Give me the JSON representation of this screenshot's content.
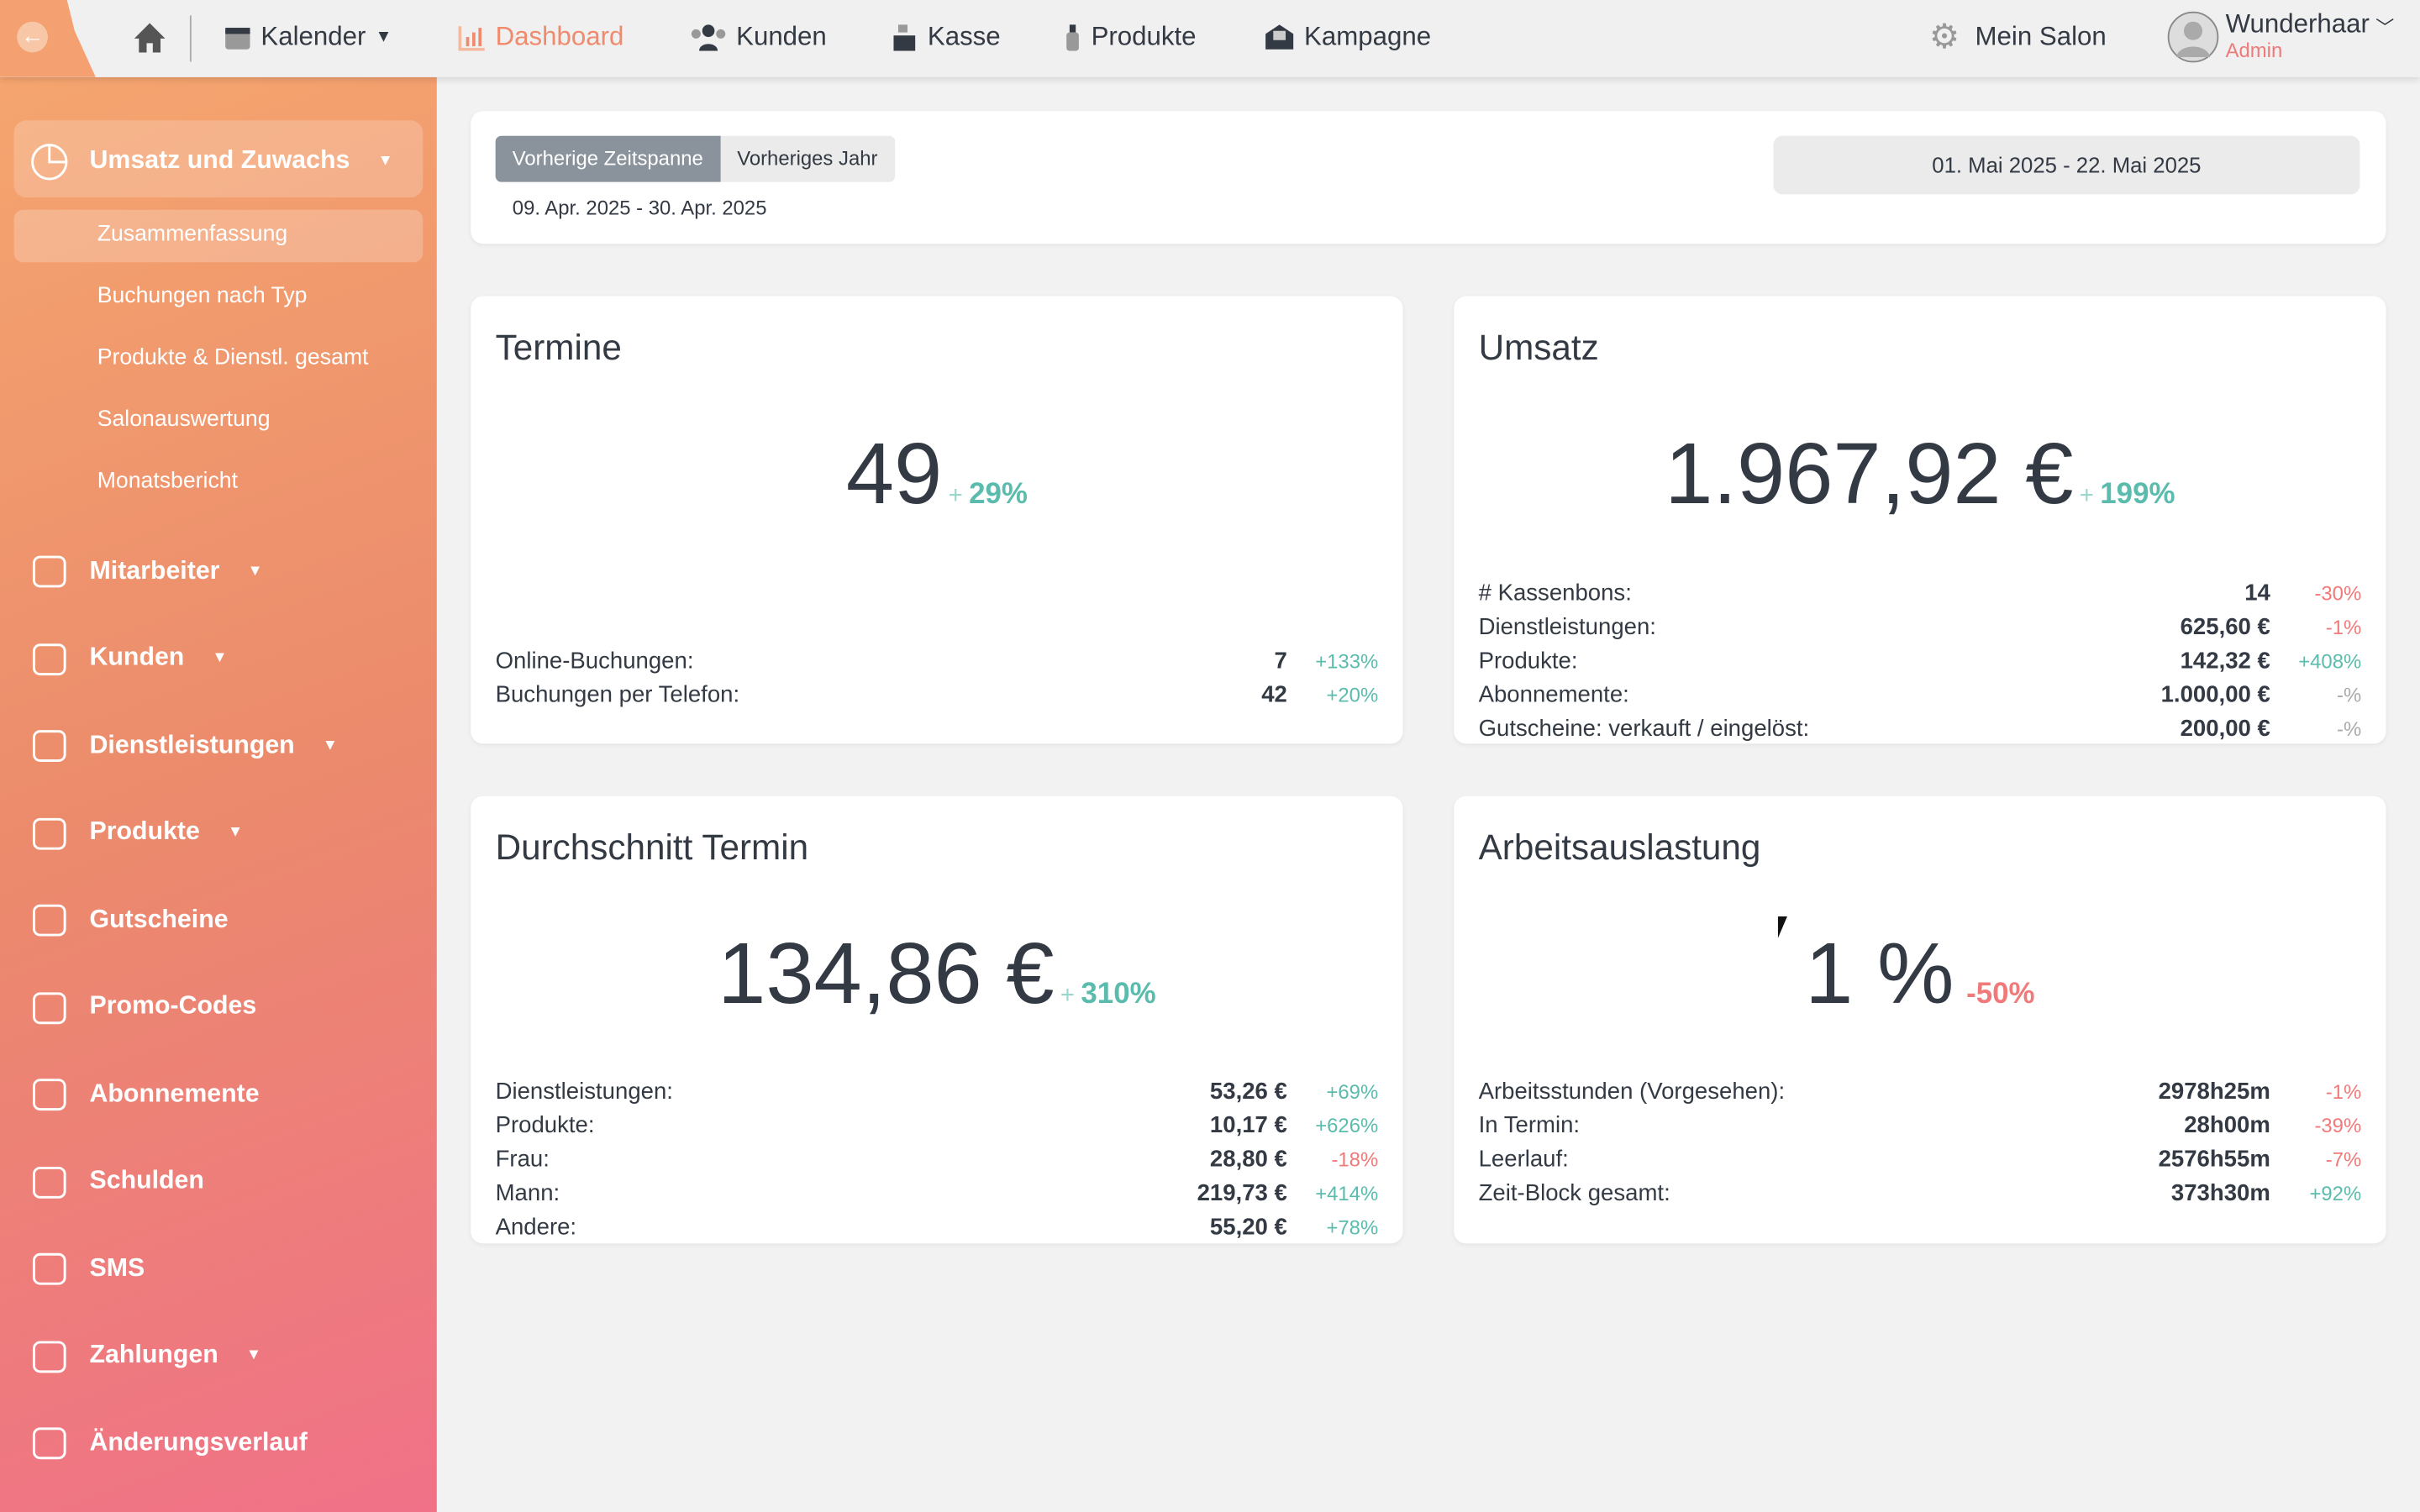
{
  "topbar": {
    "nav": [
      {
        "label": "Kalender",
        "icon": "calendar-icon"
      },
      {
        "label": "Dashboard",
        "icon": "bar-chart-icon",
        "active": true
      },
      {
        "label": "Kunden",
        "icon": "users-icon"
      },
      {
        "label": "Kasse",
        "icon": "cash-register-icon"
      },
      {
        "label": "Produkte",
        "icon": "bottle-icon"
      },
      {
        "label": "Kampagne",
        "icon": "envelope-icon"
      }
    ],
    "settings": "Mein Salon",
    "user": {
      "name": "Wunderhaar",
      "role": "Admin"
    }
  },
  "sidebar": {
    "section": "Umsatz und Zuwachs",
    "subitems": [
      "Zusammenfassung",
      "Buchungen nach Typ",
      "Produkte & Dienstl. gesamt",
      "Salonauswertung",
      "Monatsbericht"
    ],
    "items": [
      "Mitarbeiter",
      "Kunden",
      "Dienstleistungen",
      "Produkte",
      "Gutscheine",
      "Promo-Codes",
      "Abonnemente",
      "Schulden",
      "SMS",
      "Zahlungen",
      "Änderungsverlauf"
    ]
  },
  "filter": {
    "compare_options": [
      "Vorherige Zeitspanne",
      "Vorheriges Jahr"
    ],
    "selected": "Vorherige Zeitspanne",
    "previous_range": "09. Apr. 2025 - 30. Apr. 2025",
    "range": "01. Mai 2025 - 22. Mai 2025"
  },
  "colors": {
    "accent": "#f08a6c",
    "positive": "#5bbcad",
    "negative": "#f07a7a"
  },
  "cards": {
    "termine": {
      "title": "Termine",
      "value": "49",
      "plus": "+",
      "change": "29%",
      "rows": [
        {
          "label": "Online-Buchungen:",
          "value": "7",
          "change": "+133%"
        },
        {
          "label": "Buchungen per Telefon:",
          "value": "42",
          "change": "+20%"
        }
      ]
    },
    "umsatz": {
      "title": "Umsatz",
      "value": "1.967,92 €",
      "plus": "+",
      "change": "199%",
      "rows": [
        {
          "label": "# Kassenbons:",
          "value": "14",
          "change": "-30%"
        },
        {
          "label": "Dienstleistungen:",
          "value": "625,60 €",
          "change": "-1%"
        },
        {
          "label": "Produkte:",
          "value": "142,32 €",
          "change": "+408%"
        },
        {
          "label": "Abonnemente:",
          "value": "1.000,00 €",
          "change": "-%"
        },
        {
          "label": "Gutscheine: verkauft / eingelöst:",
          "value": "200,00 €",
          "change": "-%"
        }
      ]
    },
    "durchschnitt": {
      "title": "Durchschnitt Termin",
      "value": "134,86 €",
      "plus": "+",
      "change": "310%",
      "rows": [
        {
          "label": "Dienstleistungen:",
          "value": "53,26 €",
          "change": "+69%"
        },
        {
          "label": "Produkte:",
          "value": "10,17 €",
          "change": "+626%"
        },
        {
          "label": "Frau:",
          "value": "28,80 €",
          "change": "-18%"
        },
        {
          "label": "Mann:",
          "value": "219,73 €",
          "change": "+414%"
        },
        {
          "label": "Andere:",
          "value": "55,20 €",
          "change": "+78%"
        }
      ]
    },
    "auslastung": {
      "title": "Arbeitsauslastung",
      "value": "1 %",
      "plus": "",
      "change": "-50%",
      "rows": [
        {
          "label": "Arbeitsstunden (Vorgesehen):",
          "value": "2978h25m",
          "change": "-1%"
        },
        {
          "label": "In Termin:",
          "value": "28h00m",
          "change": "-39%"
        },
        {
          "label": "Leerlauf:",
          "value": "2576h55m",
          "change": "-7%"
        },
        {
          "label": "Zeit-Block gesamt:",
          "value": "373h30m",
          "change": "+92%"
        }
      ]
    }
  }
}
